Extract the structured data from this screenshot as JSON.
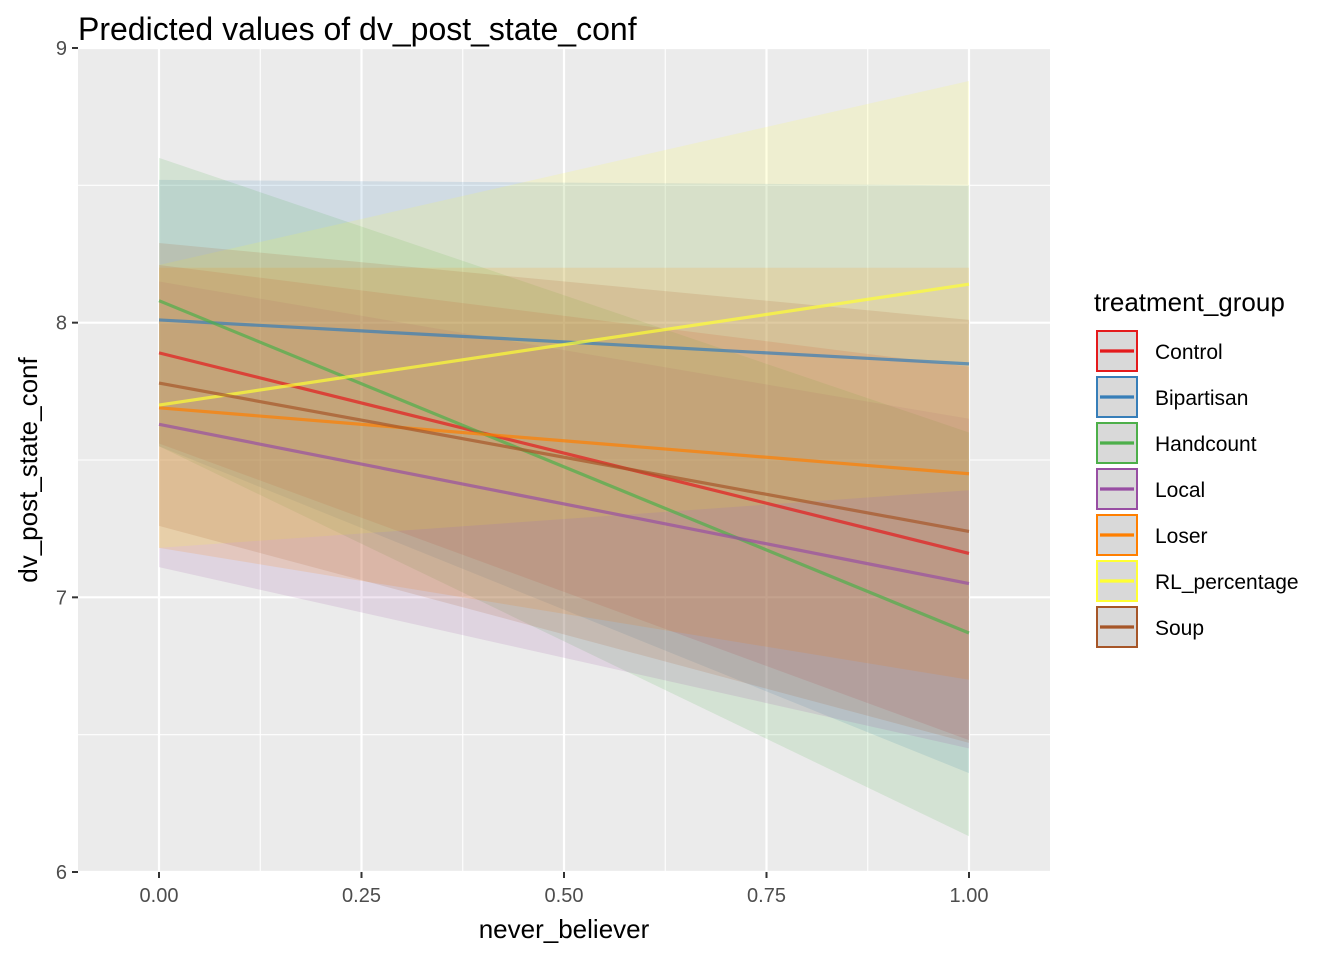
{
  "chart_data": {
    "type": "line",
    "title": "Predicted values of dv_post_state_conf",
    "xlabel": "never_believer",
    "ylabel": "dv_post_state_conf",
    "xlim": [
      -0.1,
      1.1
    ],
    "ylim": [
      6,
      9
    ],
    "x_ticks": [
      0,
      0.25,
      0.5,
      0.75,
      1
    ],
    "x_tick_labels": [
      "0.00",
      "0.25",
      "0.50",
      "0.75",
      "1.00"
    ],
    "y_ticks": [
      6,
      7,
      8,
      9
    ],
    "y_tick_labels": [
      "6",
      "7",
      "8",
      "9"
    ],
    "grid": true,
    "legend_title": "treatment_group",
    "legend_position": "right",
    "x": [
      0,
      1
    ],
    "series": [
      {
        "name": "Control",
        "color": "#E41A1C",
        "values": [
          7.89,
          7.16
        ],
        "ci_low": [
          7.56,
          6.48
        ],
        "ci_high": [
          8.21,
          7.84
        ]
      },
      {
        "name": "Bipartisan",
        "color": "#377EB8",
        "values": [
          8.01,
          7.85
        ],
        "ci_low": [
          7.55,
          6.36
        ],
        "ci_high": [
          8.52,
          8.5
        ]
      },
      {
        "name": "Handcount",
        "color": "#4DAF4A",
        "values": [
          8.08,
          6.87
        ],
        "ci_low": [
          7.55,
          6.13
        ],
        "ci_high": [
          8.6,
          7.6
        ]
      },
      {
        "name": "Local",
        "color": "#984EA3",
        "values": [
          7.63,
          7.05
        ],
        "ci_low": [
          7.11,
          6.45
        ],
        "ci_high": [
          8.15,
          7.65
        ]
      },
      {
        "name": "Loser",
        "color": "#FF7F00",
        "values": [
          7.69,
          7.45
        ],
        "ci_low": [
          7.18,
          6.7
        ],
        "ci_high": [
          8.2,
          8.2
        ]
      },
      {
        "name": "RL_percentage",
        "color": "#FFFF33",
        "values": [
          7.7,
          8.14
        ],
        "ci_low": [
          7.18,
          7.39
        ],
        "ci_high": [
          8.21,
          8.88
        ]
      },
      {
        "name": "Soup",
        "color": "#A65628",
        "values": [
          7.78,
          7.24
        ],
        "ci_low": [
          7.26,
          6.47
        ],
        "ci_high": [
          8.29,
          8.01
        ]
      }
    ]
  }
}
